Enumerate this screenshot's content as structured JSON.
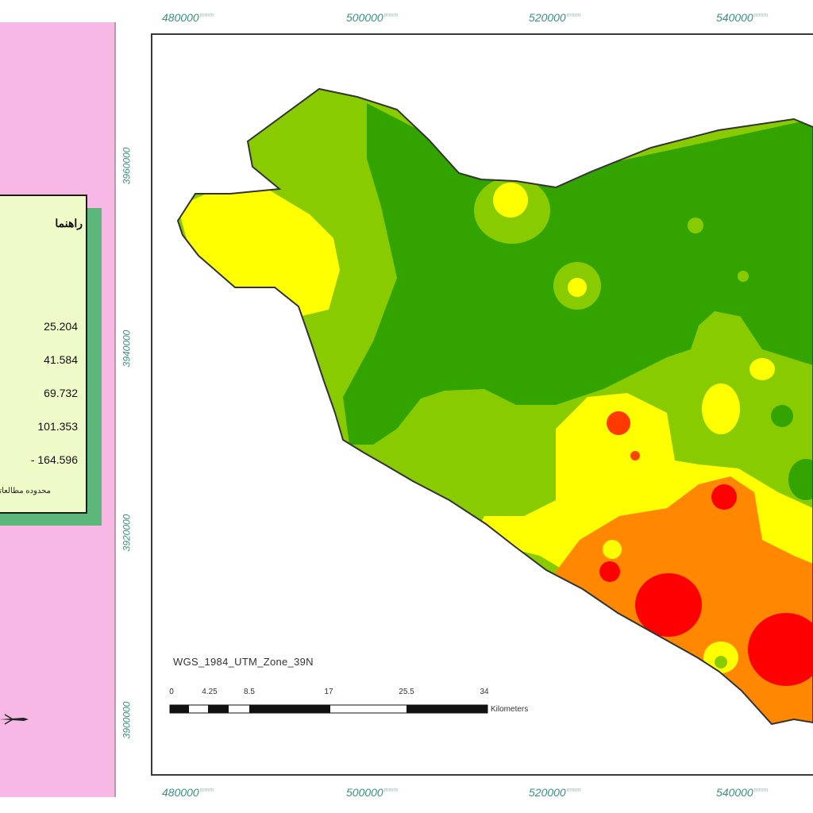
{
  "legend": {
    "title": "راهنما",
    "classes": [
      {
        "label": "25.204",
        "color": "#33a300"
      },
      {
        "label": "41.584",
        "color": "#88cc00"
      },
      {
        "label": "69.732",
        "color": "#ffff00"
      },
      {
        "label": "101.353",
        "color": "#ff8800"
      },
      {
        "label": "- 164.596",
        "color": "#ff0000"
      }
    ],
    "note": "محدوده مطالعاتی"
  },
  "map": {
    "projection": "WGS_1984_UTM_Zone_39N",
    "x_ticks": [
      "480000",
      "500000",
      "520000",
      "540000"
    ],
    "x_tick_suffix": "mmm",
    "y_ticks": [
      "3960000",
      "3940000",
      "3920000",
      "3900000"
    ],
    "scale_bar": {
      "labels": [
        "0",
        "4.25",
        "8.5",
        "17",
        "25.5",
        "34"
      ],
      "unit": "Kilometers"
    }
  },
  "colors": {
    "panel": "#f7b8e6",
    "legend_bg": "#eefbc9",
    "legend_shadow": "#5bb87a",
    "tick_text": "#3e8f7f"
  }
}
